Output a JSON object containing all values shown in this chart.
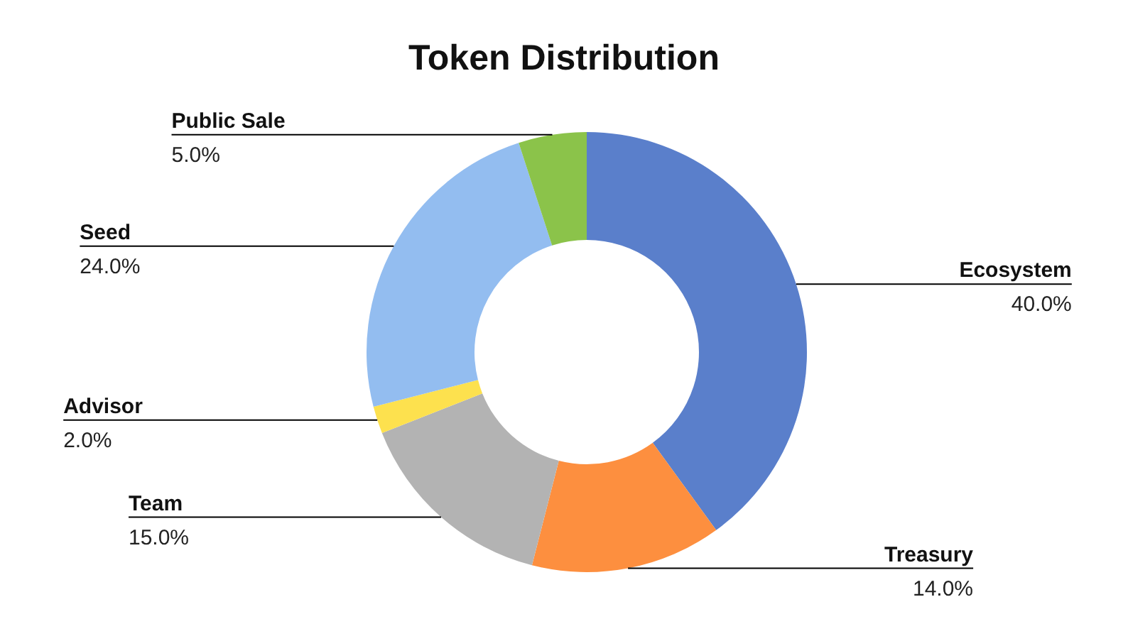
{
  "chart_data": {
    "type": "donut",
    "title": "Token Distribution",
    "categories": [
      "Ecosystem",
      "Treasury",
      "Team",
      "Advisor",
      "Seed",
      "Public Sale"
    ],
    "values": [
      40,
      14,
      15,
      2,
      24,
      5
    ],
    "colors": [
      "#5a7fcb",
      "#fd8f3f",
      "#b3b3b3",
      "#fde14e",
      "#93bdf0",
      "#8bc34a"
    ],
    "value_labels": [
      "40.0%",
      "14.0%",
      "15.0%",
      "2.0%",
      "24.0%",
      "5.0%"
    ]
  }
}
